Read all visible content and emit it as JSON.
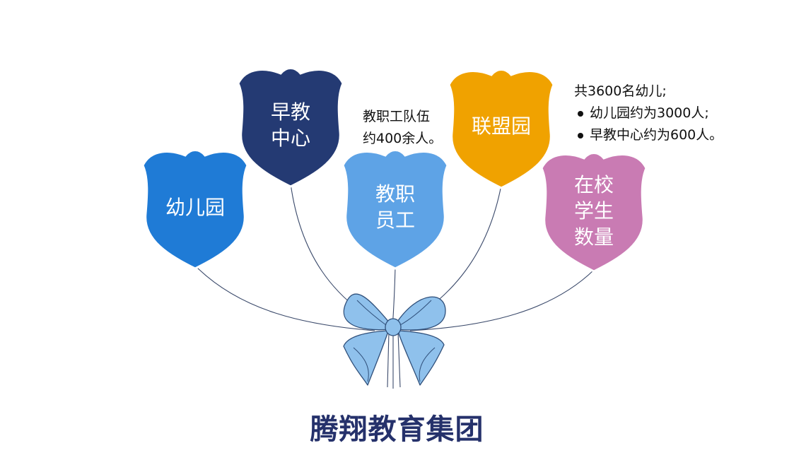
{
  "title": "腾翔教育集团",
  "colors": {
    "kindergarten": "#1f7bd6",
    "early_edu": "#243a73",
    "staff": "#5ea3e6",
    "alliance": "#f0a200",
    "students": "#c97bb3",
    "bow": "#8fc1ec",
    "string": "#3b4a6b"
  },
  "balloons": [
    {
      "id": "kindergarten",
      "label": "幼儿园",
      "icon": "shield-balloon"
    },
    {
      "id": "early_edu",
      "label": "早教\n中心",
      "icon": "shield-balloon"
    },
    {
      "id": "staff",
      "label": "教职\n员工",
      "icon": "shield-balloon"
    },
    {
      "id": "alliance",
      "label": "联盟园",
      "icon": "shield-balloon"
    },
    {
      "id": "students",
      "label": "在校\n学生\n数量",
      "icon": "shield-balloon"
    }
  ],
  "notes": {
    "staff": {
      "line1": "教职工队伍",
      "line2": "约400余人。"
    },
    "students": {
      "heading": "共3600名幼儿;",
      "bullets": [
        "幼儿园约为3000人;",
        "早教中心约为600人。"
      ]
    }
  },
  "bow_icon": "ribbon-bow"
}
